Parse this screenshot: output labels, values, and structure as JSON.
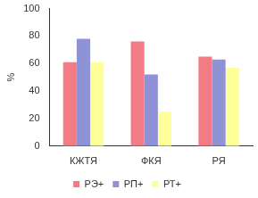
{
  "chart_data": {
    "type": "bar",
    "y_label": "%",
    "categories": [
      "КЖТЯ",
      "ФКЯ",
      "РЯ"
    ],
    "series": [
      {
        "name": "РЭ+",
        "color": "#f27c86",
        "values": [
          61,
          76,
          65
        ]
      },
      {
        "name": "РП+",
        "color": "#8f93d6",
        "values": [
          78,
          52,
          63
        ]
      },
      {
        "name": "РТ+",
        "color": "#ffff99",
        "values": [
          61,
          25,
          57
        ]
      }
    ],
    "ylim": [
      0,
      100
    ],
    "yticks": [
      0,
      20,
      40,
      60,
      80,
      100
    ],
    "grid": false,
    "legend": "bottom"
  }
}
